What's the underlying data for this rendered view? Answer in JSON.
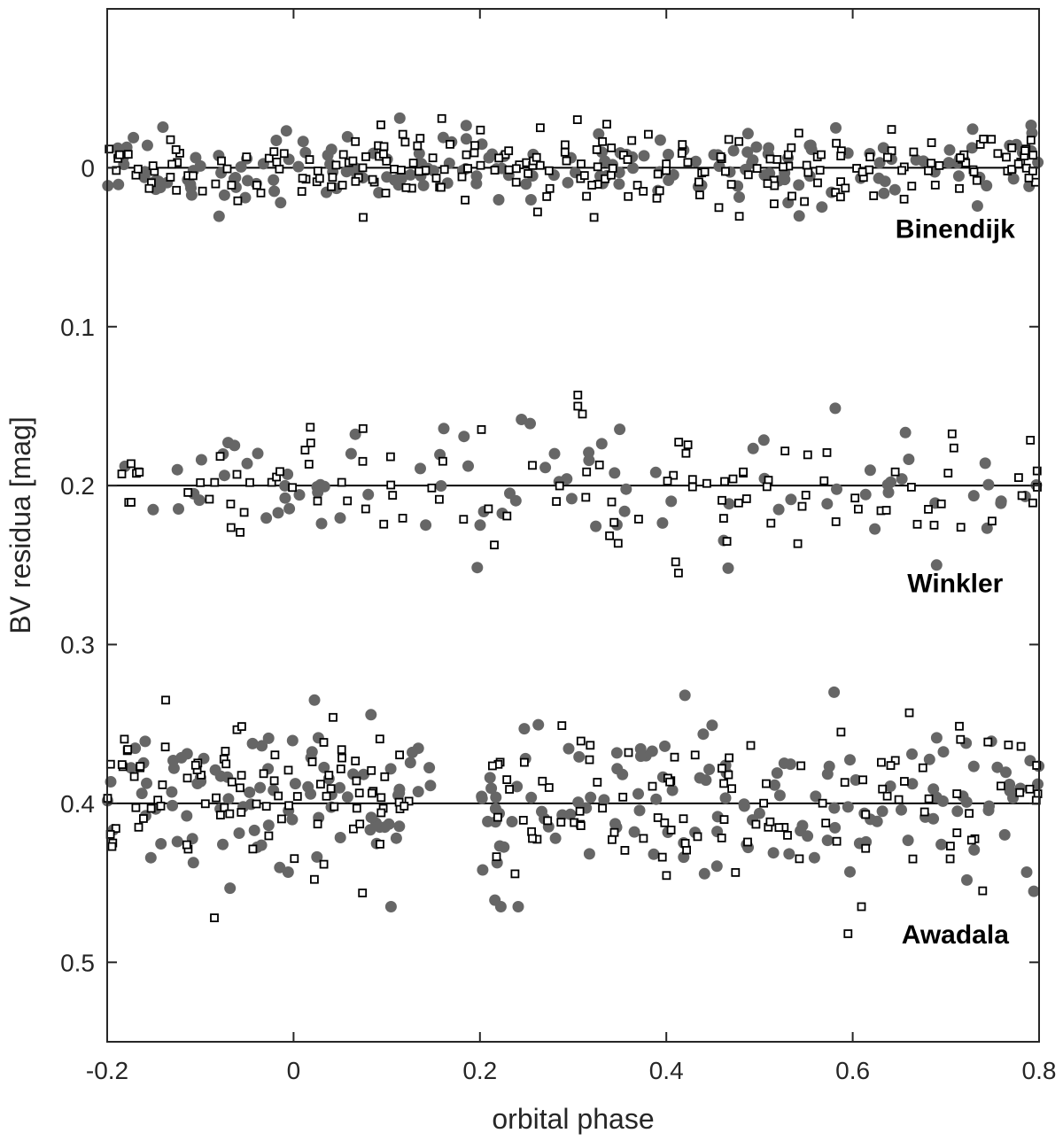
{
  "chart_data": {
    "type": "scatter",
    "title": "",
    "xlabel": "orbital phase",
    "ylabel": "BV residua  [mag]",
    "xlim": [
      -0.2,
      0.8
    ],
    "ylim": [
      -0.1,
      0.55
    ],
    "y_reversed": true,
    "grid": false,
    "x_ticks": [
      -0.2,
      0,
      0.2,
      0.4,
      0.6,
      0.8
    ],
    "x_tick_labels": [
      "-0.2",
      "0",
      "0.2",
      "0.4",
      "0.6",
      "0.8"
    ],
    "y_ticks": [
      0,
      0.1,
      0.2,
      0.3,
      0.4,
      0.5
    ],
    "y_tick_labels": [
      "0",
      "0.1",
      "0.2",
      "0.3",
      "0.4",
      "0.5"
    ],
    "colors": {
      "filled": "#666666",
      "open_stroke": "#000000",
      "axis": "#262626"
    },
    "marker_styles": {
      "filled": "filled gray circles",
      "open": "open black squares"
    },
    "groups": [
      {
        "name": "Binendijk",
        "baseline": 0.0,
        "label_x": 0.71,
        "label_y": 0.044,
        "spread": 0.012,
        "n_filled": 190,
        "n_open": 230
      },
      {
        "name": "Winkler",
        "baseline": 0.2,
        "label_x": 0.71,
        "label_y": 0.067,
        "spread": 0.02,
        "n_filled": 90,
        "n_open": 105
      },
      {
        "name": "Awadala",
        "baseline": 0.4,
        "label_x": 0.71,
        "label_y": 0.088,
        "spread": 0.025,
        "n_filled": 230,
        "n_open": 200
      }
    ],
    "data_gap": {
      "group": "Awadala",
      "x_range": [
        0.16,
        0.2
      ]
    },
    "notable_points": [
      {
        "x": 0.305,
        "y": 0.143,
        "series": "Winkler",
        "marker": "open"
      },
      {
        "x": 0.305,
        "y": 0.15,
        "series": "Winkler",
        "marker": "open"
      },
      {
        "x": 0.31,
        "y": 0.155,
        "series": "Winkler",
        "marker": "open"
      },
      {
        "x": 0.41,
        "y": 0.248,
        "series": "Winkler",
        "marker": "open"
      },
      {
        "x": 0.413,
        "y": 0.255,
        "series": "Winkler",
        "marker": "open"
      },
      {
        "x": 0.69,
        "y": 0.25,
        "series": "Winkler",
        "marker": "filled"
      },
      {
        "x": 0.42,
        "y": 0.332,
        "series": "Awadala",
        "marker": "filled"
      },
      {
        "x": 0.58,
        "y": 0.33,
        "series": "Awadala",
        "marker": "filled"
      },
      {
        "x": -0.085,
        "y": 0.472,
        "series": "Awadala",
        "marker": "open"
      },
      {
        "x": 0.595,
        "y": 0.482,
        "series": "Awadala",
        "marker": "open"
      }
    ]
  }
}
